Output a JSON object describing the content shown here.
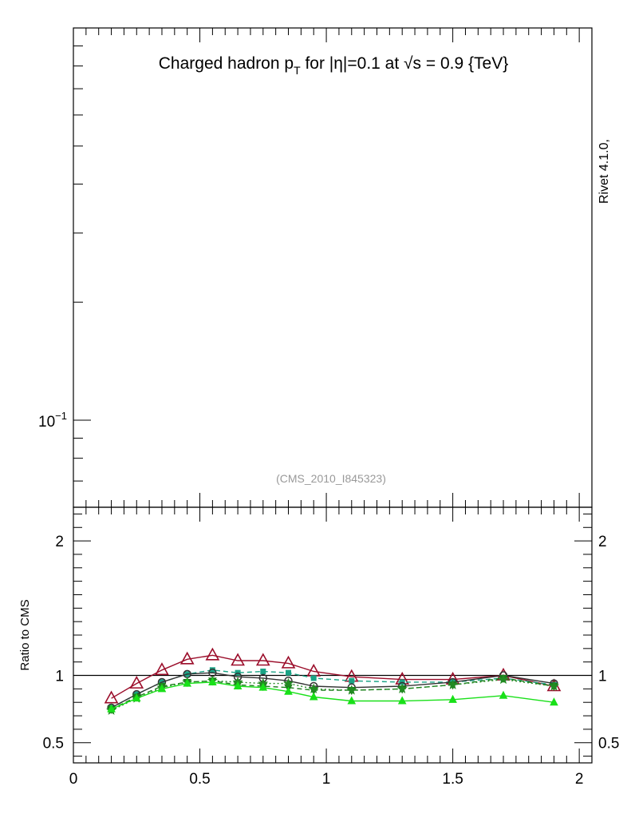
{
  "figure": {
    "title_main": "Charged hadron p",
    "title_sub": "T",
    "title_rest": " for |η|=0.1 at √s = 0.9 {TeV}",
    "side_label": "Rivet 4.1.0,",
    "watermark": "(CMS_2010_I845323)"
  },
  "chart_data": [
    {
      "type": "line",
      "panel": "main",
      "yscale": "log",
      "xlim": [
        0,
        2.05
      ],
      "ylim": [
        0.06,
        1.0
      ],
      "y_tick_labels": [
        {
          "value": 0.1,
          "label": "10",
          "exponent": "−1"
        }
      ],
      "series": []
    },
    {
      "type": "line",
      "panel": "ratio",
      "ylabel": "Ratio to CMS",
      "xlim": [
        0,
        2.05
      ],
      "ylim": [
        0.35,
        2.25
      ],
      "reference_line": 1.0,
      "x_tick_labels": [
        "0",
        "0.5",
        "1",
        "1.5",
        "2"
      ],
      "y_tick_labels": [
        "0.5",
        "1",
        "2"
      ],
      "x": [
        0.15,
        0.25,
        0.35,
        0.45,
        0.55,
        0.65,
        0.75,
        0.85,
        0.95,
        1.1,
        1.3,
        1.5,
        1.7,
        1.9
      ],
      "series": [
        {
          "values": [
            0.83,
            0.94,
            1.04,
            1.12,
            1.15,
            1.11,
            1.11,
            1.09,
            1.03,
            0.99,
            0.97,
            0.97,
            1.0,
            0.92
          ],
          "color": "#9b0d2a",
          "marker": "open-triangle",
          "dash": "solid"
        },
        {
          "values": [
            0.76,
            0.86,
            0.95,
            1.01,
            1.04,
            1.02,
            1.03,
            1.02,
            0.98,
            0.96,
            0.95,
            0.95,
            0.98,
            0.93
          ],
          "color": "#1aa385",
          "marker": "square",
          "dash": "dashed"
        },
        {
          "values": [
            0.76,
            0.86,
            0.95,
            1.01,
            1.02,
            0.99,
            0.98,
            0.96,
            0.92,
            0.91,
            0.92,
            0.95,
            1.0,
            0.94
          ],
          "color": "#333333",
          "marker": "open-circle",
          "dash": "solid"
        },
        {
          "values": [
            0.75,
            0.84,
            0.92,
            0.95,
            0.96,
            0.93,
            0.92,
            0.91,
            0.89,
            0.89,
            0.9,
            0.93,
            0.98,
            0.92
          ],
          "color": "#1b7e1b",
          "marker": "down-triangle",
          "dash": "dashed"
        },
        {
          "values": [
            0.74,
            0.83,
            0.91,
            0.95,
            0.96,
            0.95,
            0.94,
            0.94,
            0.9,
            0.89,
            0.9,
            0.93,
            0.97,
            0.92
          ],
          "color": "#228b22",
          "marker": "star",
          "dash": "dotted"
        },
        {
          "values": [
            0.75,
            0.83,
            0.9,
            0.94,
            0.95,
            0.92,
            0.91,
            0.88,
            0.84,
            0.81,
            0.81,
            0.82,
            0.85,
            0.8
          ],
          "color": "#19e019",
          "marker": "filled-triangle",
          "dash": "solid"
        }
      ]
    }
  ]
}
